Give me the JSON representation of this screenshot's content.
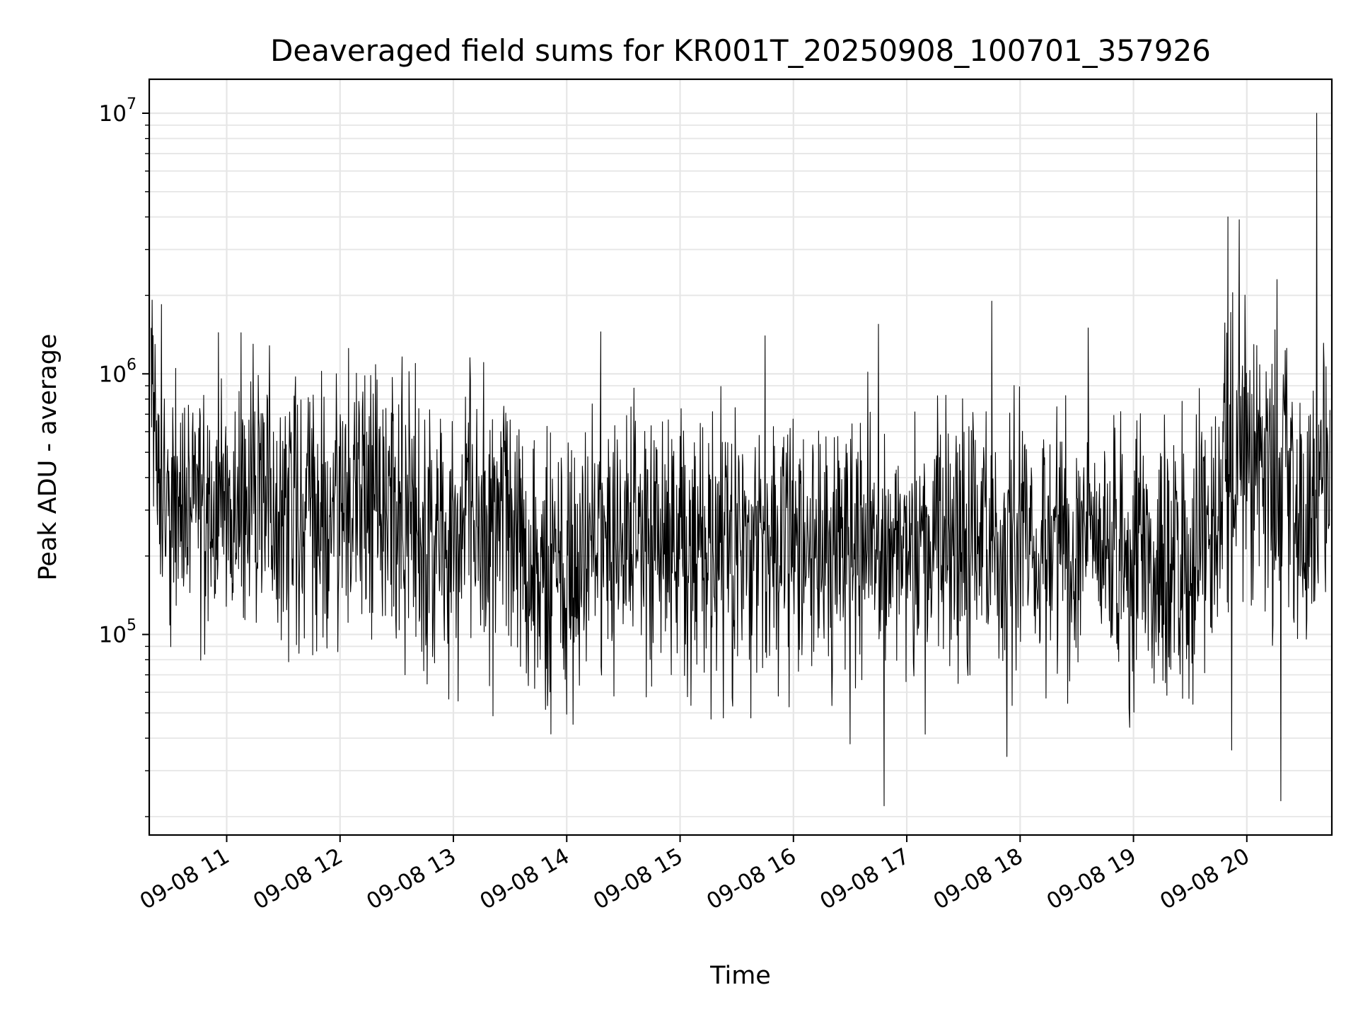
{
  "chart_data": {
    "type": "line",
    "title": "Deaveraged field sums for KR001T_20250908_100701_357926",
    "xlabel": "Time",
    "ylabel": "Peak ADU - average",
    "yscale": "log",
    "ylim": [
      17000,
      13500000
    ],
    "xlim": [
      "2025-09-08 10:19",
      "2025-09-08 20:45"
    ],
    "grid": true,
    "line_color": "#000000",
    "grid_color": "#e6e6e6",
    "x_ticks": [
      {
        "value": "2025-09-08 11:00",
        "label": "09-08 11"
      },
      {
        "value": "2025-09-08 12:00",
        "label": "09-08 12"
      },
      {
        "value": "2025-09-08 13:00",
        "label": "09-08 13"
      },
      {
        "value": "2025-09-08 14:00",
        "label": "09-08 14"
      },
      {
        "value": "2025-09-08 15:00",
        "label": "09-08 15"
      },
      {
        "value": "2025-09-08 16:00",
        "label": "09-08 16"
      },
      {
        "value": "2025-09-08 17:00",
        "label": "09-08 17"
      },
      {
        "value": "2025-09-08 18:00",
        "label": "09-08 18"
      },
      {
        "value": "2025-09-08 19:00",
        "label": "09-08 19"
      },
      {
        "value": "2025-09-08 20:00",
        "label": "09-08 20"
      }
    ],
    "y_ticks": [
      {
        "value": 100000,
        "base": "10",
        "exp": "5"
      },
      {
        "value": 1000000,
        "base": "10",
        "exp": "6"
      },
      {
        "value": 10000000,
        "base": "10",
        "exp": "7"
      }
    ],
    "series": [
      {
        "x": [
          "2025-09-08 10:20",
          "2025-09-08 10:30",
          "2025-09-08 10:40",
          "2025-09-08 10:50",
          "2025-09-08 11:00",
          "2025-09-08 11:10",
          "2025-09-08 11:20",
          "2025-09-08 11:30",
          "2025-09-08 11:40",
          "2025-09-08 11:50",
          "2025-09-08 12:00",
          "2025-09-08 12:10",
          "2025-09-08 12:20",
          "2025-09-08 12:30",
          "2025-09-08 12:40",
          "2025-09-08 12:50",
          "2025-09-08 13:00",
          "2025-09-08 13:10",
          "2025-09-08 13:20",
          "2025-09-08 13:30",
          "2025-09-08 13:40",
          "2025-09-08 13:50",
          "2025-09-08 14:00",
          "2025-09-08 14:10",
          "2025-09-08 14:20",
          "2025-09-08 14:30",
          "2025-09-08 14:40",
          "2025-09-08 14:50",
          "2025-09-08 15:00",
          "2025-09-08 15:10",
          "2025-09-08 15:20",
          "2025-09-08 15:30",
          "2025-09-08 15:40",
          "2025-09-08 15:50",
          "2025-09-08 16:00",
          "2025-09-08 16:10",
          "2025-09-08 16:20",
          "2025-09-08 16:30",
          "2025-09-08 16:40",
          "2025-09-08 16:50",
          "2025-09-08 17:00",
          "2025-09-08 17:10",
          "2025-09-08 17:20",
          "2025-09-08 17:30",
          "2025-09-08 17:40",
          "2025-09-08 17:50",
          "2025-09-08 18:00",
          "2025-09-08 18:10",
          "2025-09-08 18:20",
          "2025-09-08 18:30",
          "2025-09-08 18:40",
          "2025-09-08 18:50",
          "2025-09-08 19:00",
          "2025-09-08 19:10",
          "2025-09-08 19:20",
          "2025-09-08 19:30",
          "2025-09-08 19:40",
          "2025-09-08 19:50",
          "2025-09-08 20:00",
          "2025-09-08 20:10",
          "2025-09-08 20:20",
          "2025-09-08 20:30",
          "2025-09-08 20:40",
          "2025-09-08 20:44"
        ],
        "y": [
          600000,
          350000,
          300000,
          320000,
          280000,
          400000,
          380000,
          300000,
          280000,
          260000,
          300000,
          320000,
          280000,
          300000,
          250000,
          230000,
          220000,
          260000,
          240000,
          280000,
          200000,
          190000,
          180000,
          260000,
          210000,
          230000,
          200000,
          220000,
          240000,
          210000,
          220000,
          200000,
          230000,
          190000,
          230000,
          210000,
          180000,
          250000,
          220000,
          200000,
          230000,
          200000,
          260000,
          230000,
          250000,
          240000,
          220000,
          210000,
          230000,
          200000,
          240000,
          200000,
          220000,
          200000,
          180000,
          200000,
          280000,
          400000,
          500000,
          380000,
          350000,
          300000,
          450000,
          400000
        ],
        "spikes": [
          {
            "x": "2025-09-08 10:20",
            "y": 1500000
          },
          {
            "x": "2025-09-08 10:33",
            "y": 1050000
          },
          {
            "x": "2025-09-08 11:14",
            "y": 1300000
          },
          {
            "x": "2025-09-08 13:43",
            "y": 62000
          },
          {
            "x": "2025-09-08 14:18",
            "y": 1450000
          },
          {
            "x": "2025-09-08 14:25",
            "y": 58000
          },
          {
            "x": "2025-09-08 15:45",
            "y": 1400000
          },
          {
            "x": "2025-09-08 15:52",
            "y": 58000
          },
          {
            "x": "2025-09-08 16:30",
            "y": 38000
          },
          {
            "x": "2025-09-08 16:45",
            "y": 1550000
          },
          {
            "x": "2025-09-08 16:48",
            "y": 22000
          },
          {
            "x": "2025-09-08 17:45",
            "y": 1900000
          },
          {
            "x": "2025-09-08 17:53",
            "y": 34000
          },
          {
            "x": "2025-09-08 18:36",
            "y": 1500000
          },
          {
            "x": "2025-09-08 18:58",
            "y": 44000
          },
          {
            "x": "2025-09-08 19:50",
            "y": 4000000
          },
          {
            "x": "2025-09-08 19:52",
            "y": 36000
          },
          {
            "x": "2025-09-08 19:56",
            "y": 3900000
          },
          {
            "x": "2025-09-08 20:16",
            "y": 2300000
          },
          {
            "x": "2025-09-08 20:18",
            "y": 23000
          },
          {
            "x": "2025-09-08 20:37",
            "y": 10000000
          }
        ]
      }
    ]
  }
}
